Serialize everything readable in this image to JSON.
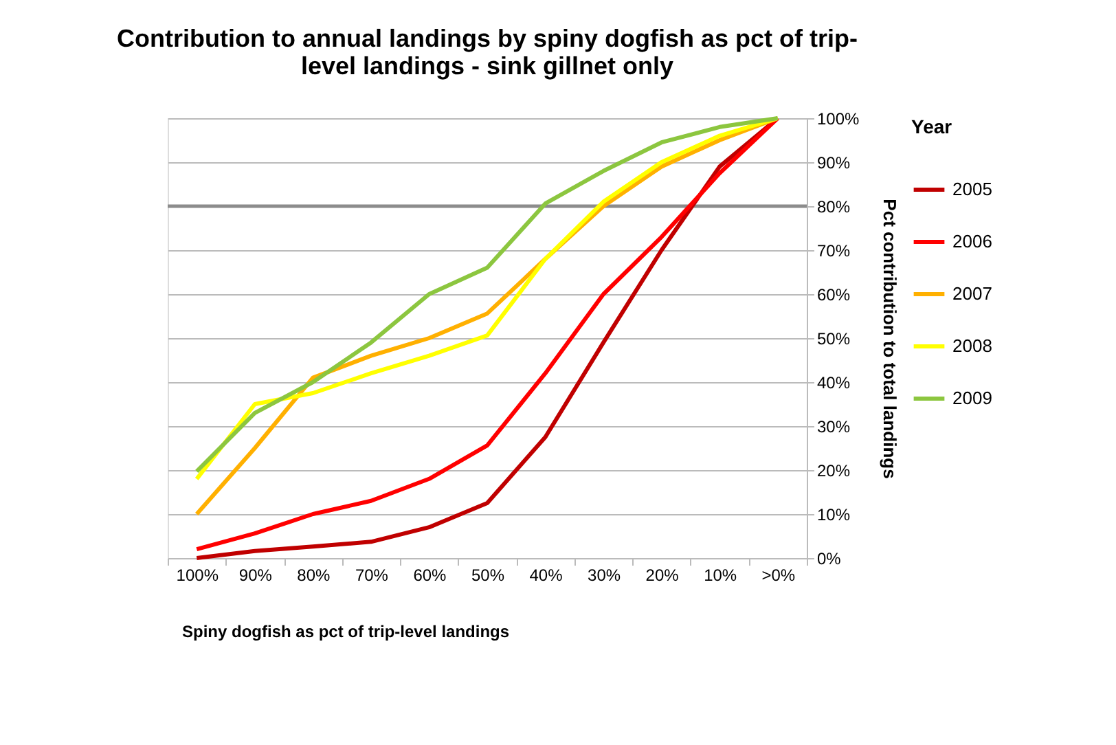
{
  "chart_data": {
    "type": "line",
    "title": [
      "Contribution to annual landings by spiny dogfish as pct of trip-",
      "level landings - sink gillnet only"
    ],
    "xlabel": "Spiny dogfish as pct of trip-level landings",
    "ylabel": "Pct contribution to total landings",
    "legend_title": "Year",
    "legend": "right",
    "grid": "y",
    "categories": [
      "100%",
      "90%",
      "80%",
      "70%",
      "60%",
      "50%",
      "40%",
      "30%",
      "20%",
      "10%",
      ">0%"
    ],
    "ylim": [
      0,
      100
    ],
    "yticks": [
      {
        "value": 0,
        "label": "0%"
      },
      {
        "value": 10,
        "label": "10%"
      },
      {
        "value": 20,
        "label": "20%"
      },
      {
        "value": 30,
        "label": "30%"
      },
      {
        "value": 40,
        "label": "40%"
      },
      {
        "value": 50,
        "label": "50%"
      },
      {
        "value": 60,
        "label": "60%"
      },
      {
        "value": 70,
        "label": "70%"
      },
      {
        "value": 80,
        "label": "80%"
      },
      {
        "value": 90,
        "label": "90%"
      },
      {
        "value": 100,
        "label": "100%"
      }
    ],
    "ref_lines": [
      {
        "axis": "y",
        "value": 80,
        "color": "#8c8c8c"
      }
    ],
    "series": [
      {
        "name": "2005",
        "color": "#c00000",
        "values": [
          0,
          1.6,
          2.6,
          3.7,
          7,
          12.5,
          27.5,
          49,
          70,
          89,
          100
        ]
      },
      {
        "name": "2006",
        "color": "#ff0000",
        "values": [
          2,
          5.6,
          10,
          13,
          18,
          25.6,
          42,
          60,
          73,
          87.5,
          100
        ]
      },
      {
        "name": "2007",
        "color": "#ffb000",
        "values": [
          10,
          25,
          41,
          46,
          50,
          55.6,
          68,
          80,
          89,
          95,
          100
        ]
      },
      {
        "name": "2008",
        "color": "#ffff00",
        "values": [
          18,
          35,
          37.5,
          42,
          46,
          50.6,
          68,
          81,
          90,
          96,
          100
        ]
      },
      {
        "name": "2009",
        "color": "#8cc63f",
        "values": [
          19.7,
          33,
          40,
          49,
          60,
          66,
          80.6,
          88,
          94.5,
          98,
          100
        ]
      }
    ]
  }
}
